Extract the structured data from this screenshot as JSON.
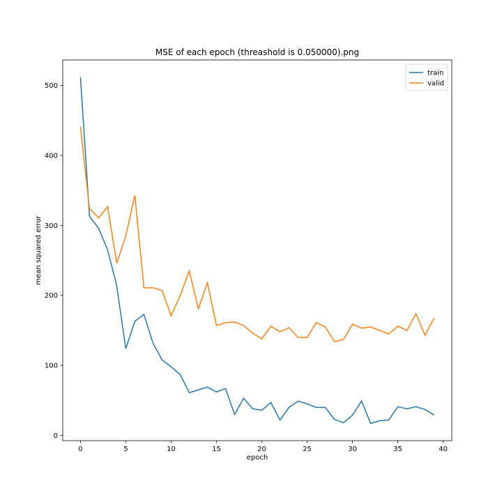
{
  "chart_data": {
    "type": "line",
    "title": "MSE of each epoch (threashold is 0.050000).png",
    "xlabel": "epoch",
    "ylabel": "mean squared error",
    "x": [
      0,
      1,
      2,
      3,
      4,
      5,
      6,
      7,
      8,
      9,
      10,
      11,
      12,
      13,
      14,
      15,
      16,
      17,
      18,
      19,
      20,
      21,
      22,
      23,
      24,
      25,
      26,
      27,
      28,
      29,
      30,
      31,
      32,
      33,
      34,
      35,
      36,
      37,
      38,
      39
    ],
    "series": [
      {
        "name": "train",
        "color": "#1f77b4",
        "values": [
          512,
          313,
          296,
          265,
          214,
          124,
          163,
          173,
          132,
          108,
          98,
          87,
          61,
          65,
          69,
          62,
          67,
          30,
          53,
          38,
          36,
          47,
          22,
          40,
          49,
          45,
          40,
          40,
          23,
          18,
          29,
          49,
          17,
          21,
          22,
          41,
          38,
          41,
          37,
          29
        ]
      },
      {
        "name": "valid",
        "color": "#ff7f0e",
        "values": [
          441,
          324,
          311,
          327,
          246,
          285,
          343,
          211,
          211,
          207,
          171,
          200,
          235,
          181,
          218,
          157,
          161,
          162,
          157,
          146,
          138,
          156,
          148,
          154,
          140,
          140,
          161,
          155,
          134,
          137,
          159,
          153,
          155,
          150,
          145,
          156,
          150,
          174,
          143,
          168
        ]
      }
    ],
    "xlim": [
      -1.95,
      40.95
    ],
    "ylim": [
      -7.5,
      536.5
    ],
    "xticks": [
      0,
      5,
      10,
      15,
      20,
      25,
      30,
      35,
      40
    ],
    "yticks": [
      0,
      100,
      200,
      300,
      400,
      500
    ],
    "legend": "upper right"
  }
}
